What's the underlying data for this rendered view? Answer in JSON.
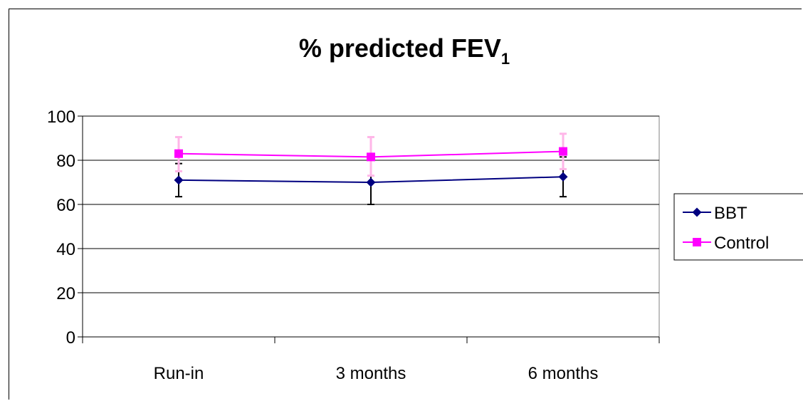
{
  "chart_data": {
    "type": "line",
    "title": "% predicted FEV",
    "title_subscript": "1",
    "categories": [
      "Run-in",
      "3 months",
      "6 months"
    ],
    "ylim": [
      0,
      100
    ],
    "yticks": [
      0,
      20,
      40,
      60,
      80,
      100
    ],
    "grid": true,
    "legend_position": "right",
    "series": [
      {
        "name": "BBT",
        "color": "#000080",
        "marker": "diamond",
        "values": [
          71,
          70,
          72.5
        ],
        "error_low": [
          63.5,
          60,
          63.5
        ],
        "error_high": [
          78.5,
          80,
          81.5
        ],
        "error_color": "#000000"
      },
      {
        "name": "Control",
        "color": "#ff00ff",
        "marker": "square",
        "values": [
          83,
          81.5,
          84
        ],
        "error_low": [
          75,
          73,
          76
        ],
        "error_high": [
          90.5,
          90.5,
          92
        ],
        "error_color": "#ffb6e8"
      }
    ]
  }
}
